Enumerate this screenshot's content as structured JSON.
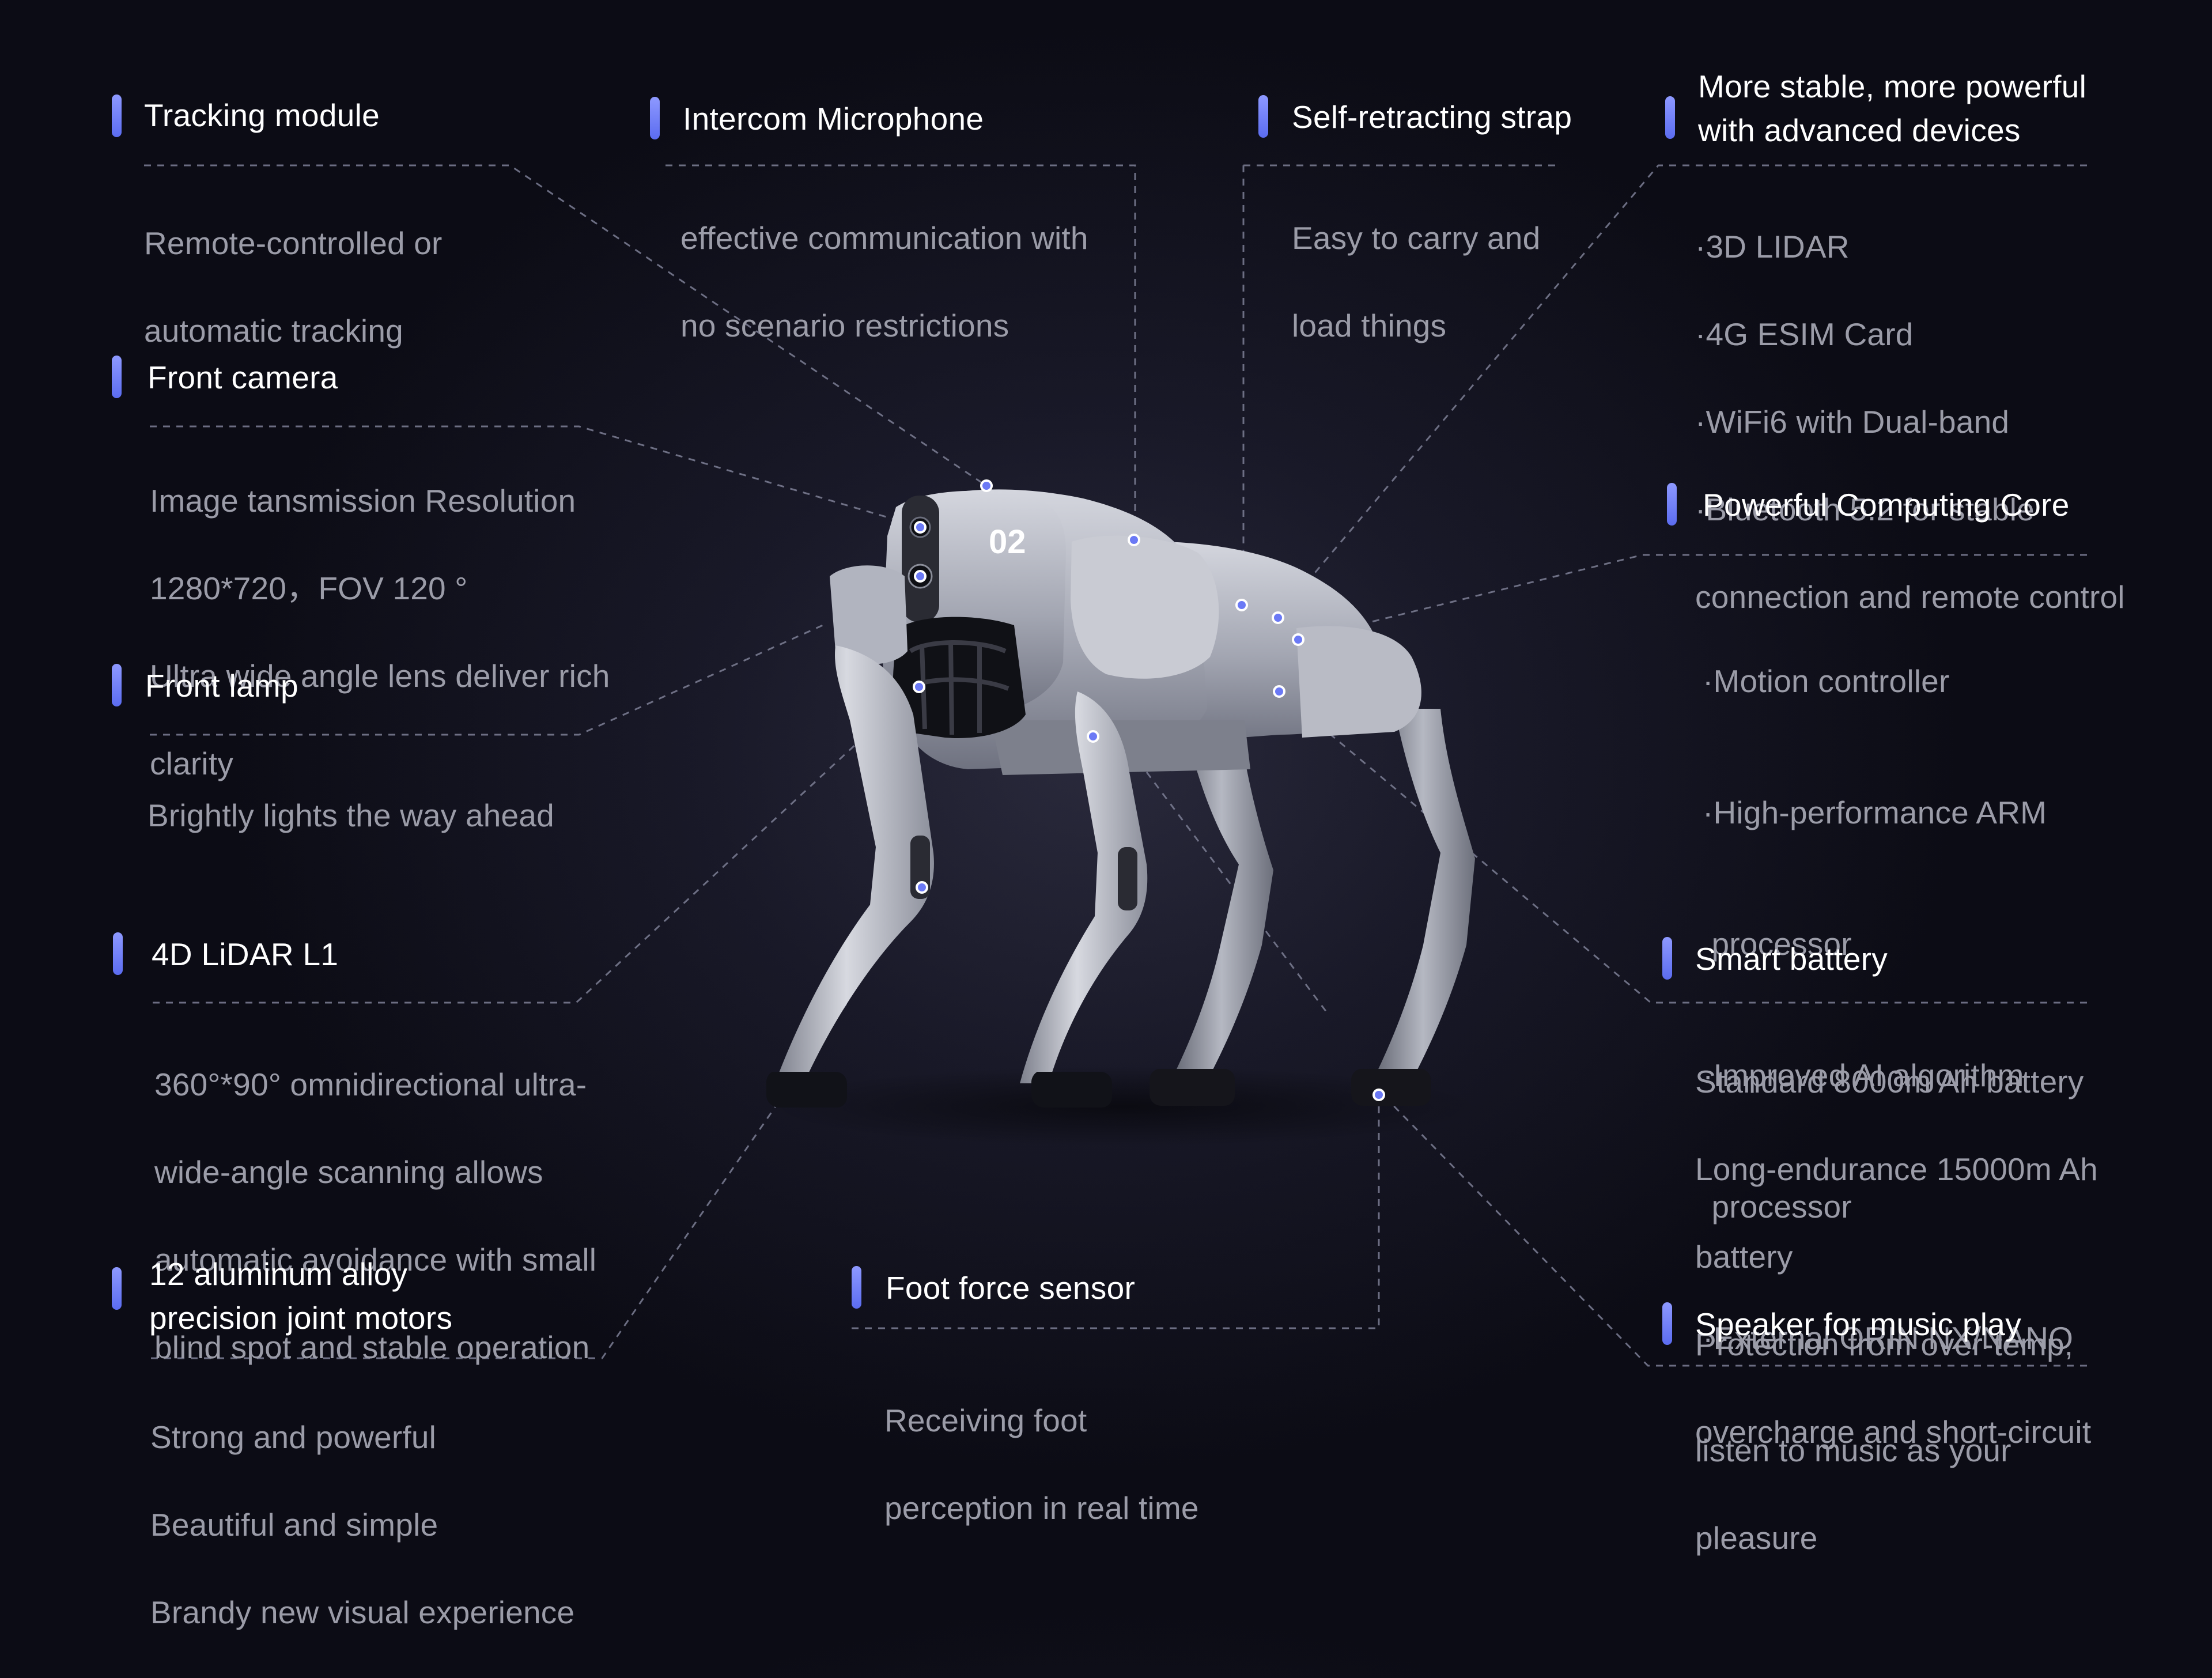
{
  "accent_color": "#6b79f5",
  "robot_label": "02",
  "features": [
    {
      "id": "tracking",
      "title": "Tracking module",
      "desc": [
        "Remote-controlled or",
        "automatic tracking"
      ]
    },
    {
      "id": "intercom",
      "title": "Intercom Microphone",
      "desc": [
        "effective communication with",
        "no scenario restrictions"
      ]
    },
    {
      "id": "strap",
      "title": "Self-retracting strap",
      "desc": [
        "Easy to carry and",
        "load things"
      ]
    },
    {
      "id": "devices",
      "title": "More stable, more powerful\nwith advanced devices",
      "desc": [
        "·3D LIDAR",
        "·4G ESIM Card",
        "·WiFi6 with Dual-band",
        "·Bluetooth 5.2 for stable",
        "connection and remote control"
      ]
    },
    {
      "id": "camera",
      "title": "Front camera",
      "desc": [
        "Image tansmission Resolution",
        "1280*720，FOV 120 °",
        "Ultra wide angle lens deliver rich",
        "clarity"
      ]
    },
    {
      "id": "computing",
      "title": "Powerful Computing Core",
      "desc": [
        "·Motion controller",
        "·High-performance ARM",
        " processor",
        "·Improved AI algorithm",
        " processor",
        "·External ORIN NX/NANO"
      ]
    },
    {
      "id": "lamp",
      "title": "Front lamp",
      "desc": [
        "Brightly lights the way ahead"
      ]
    },
    {
      "id": "lidar",
      "title": "4D LiDAR L1",
      "desc": [
        "360°*90° omnidirectional ultra-",
        "wide-angle scanning allows",
        "automatic avoidance with small",
        "blind spot and stable operation"
      ]
    },
    {
      "id": "battery",
      "title": "Smart battery",
      "desc": [
        "Standard 8000m Ah battery",
        "Long-endurance 15000m Ah",
        "battery",
        "Protection from over-temp,",
        "overcharge and short-circuit"
      ]
    },
    {
      "id": "motors",
      "title": "12 aluminum alloy\nprecision joint motors",
      "desc": [
        "Strong and powerful",
        "Beautiful and simple",
        "Brandy new visual experience"
      ]
    },
    {
      "id": "foot",
      "title": "Foot force sensor",
      "desc": [
        "Receiving foot",
        "perception in real time"
      ]
    },
    {
      "id": "speaker",
      "title": "Speaker for music play",
      "desc": [
        "listen to music as your",
        "pleasure"
      ]
    }
  ]
}
